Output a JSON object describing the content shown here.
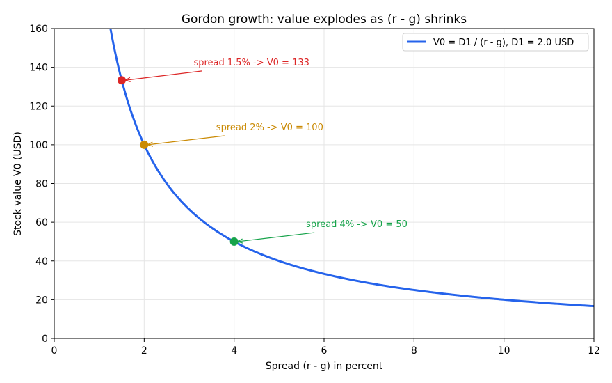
{
  "chart_data": {
    "type": "line",
    "title": "Gordon growth: value explodes as (r - g) shrinks",
    "xlabel": "Spread (r - g) in percent",
    "ylabel": "Stock value V0 (USD)",
    "xlim": [
      0,
      12
    ],
    "ylim": [
      0,
      160
    ],
    "xticks": [
      0,
      2,
      4,
      6,
      8,
      10,
      12
    ],
    "yticks": [
      0,
      20,
      40,
      60,
      80,
      100,
      120,
      140,
      160
    ],
    "grid": true,
    "legend_position": "top-right",
    "series": [
      {
        "name": "V0 = D1 / (r - g),  D1 = 2.0 USD",
        "color": "#2563eb",
        "formula": "200 / x",
        "x_range": [
          1.25,
          12
        ],
        "sample_points": [
          [
            1.25,
            160
          ],
          [
            1.5,
            133.3
          ],
          [
            2,
            100
          ],
          [
            3,
            66.7
          ],
          [
            4,
            50
          ],
          [
            5,
            40
          ],
          [
            6,
            33.3
          ],
          [
            8,
            25
          ],
          [
            10,
            20
          ],
          [
            12,
            16.7
          ]
        ]
      }
    ],
    "highlighted_points": [
      {
        "x": 1.5,
        "y": 133.3,
        "color": "#dc2626",
        "label": "spread 1.5% -> V0 = 133",
        "label_x": 3.1,
        "label_y": 141
      },
      {
        "x": 2,
        "y": 100,
        "color": "#ca8a04",
        "label": "spread 2% -> V0 = 100",
        "label_x": 3.6,
        "label_y": 107.5
      },
      {
        "x": 4,
        "y": 50,
        "color": "#16a34a",
        "label": "spread 4% -> V0 = 50",
        "label_x": 5.6,
        "label_y": 57.5
      }
    ]
  }
}
